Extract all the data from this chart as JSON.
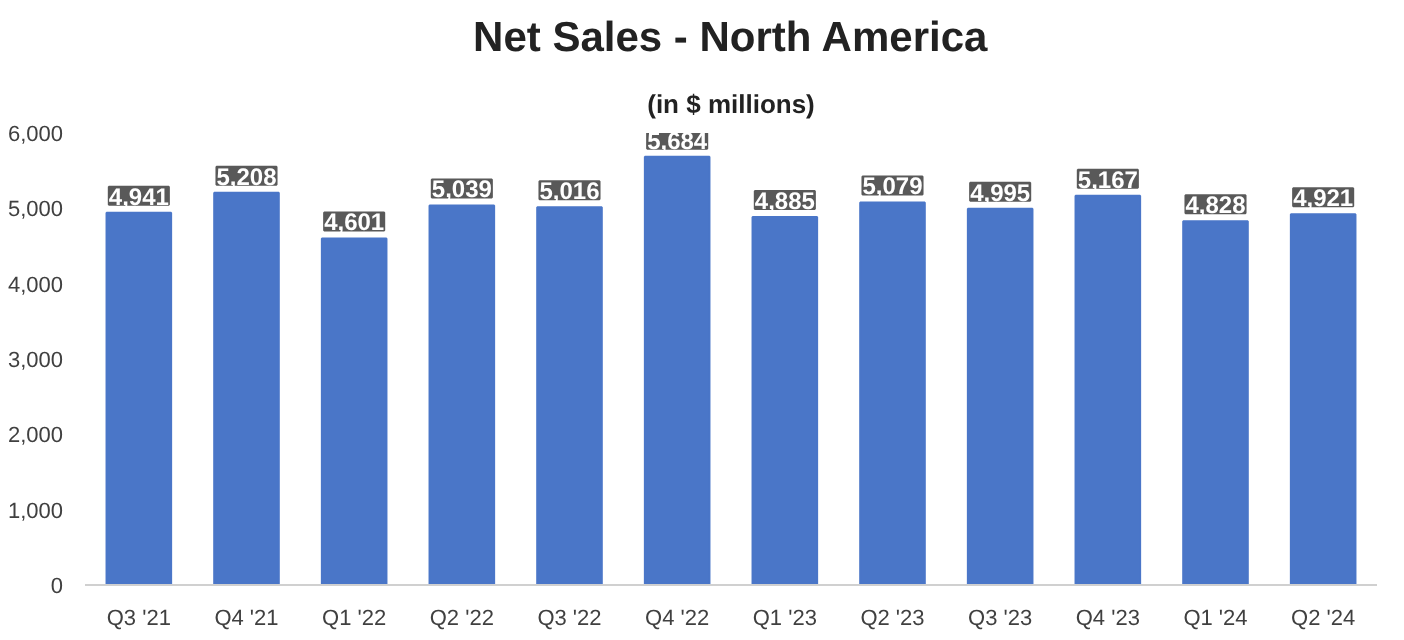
{
  "chart_data": {
    "type": "bar",
    "title": "Net Sales - North America",
    "subtitle": "(in $ millions)",
    "categories": [
      "Q3 '21",
      "Q4 '21",
      "Q1 '22",
      "Q2 '22",
      "Q3 '22",
      "Q4 '22",
      "Q1 '23",
      "Q2 '23",
      "Q3 '23",
      "Q4 '23",
      "Q1 '24",
      "Q2 '24"
    ],
    "values": [
      4941,
      5208,
      4601,
      5039,
      5016,
      5684,
      4885,
      5079,
      4995,
      5167,
      4828,
      4921
    ],
    "color": "#4a76c8",
    "ylim": [
      0,
      6000
    ],
    "yticks": [
      {
        "value": 0,
        "label": "0"
      },
      {
        "value": 1000,
        "label": "1,000"
      },
      {
        "value": 2000,
        "label": "2,000"
      },
      {
        "value": 3000,
        "label": "3,000"
      },
      {
        "value": 4000,
        "label": "4,000"
      },
      {
        "value": 5000,
        "label": "5,000"
      },
      {
        "value": 6000,
        "label": "6,000"
      }
    ],
    "value_labels": [
      "4,941",
      "5,208",
      "4,601",
      "5,039",
      "5,016",
      "5,684",
      "4,885",
      "5,079",
      "4,995",
      "5,167",
      "4,828",
      "4,921"
    ],
    "grid": false
  }
}
